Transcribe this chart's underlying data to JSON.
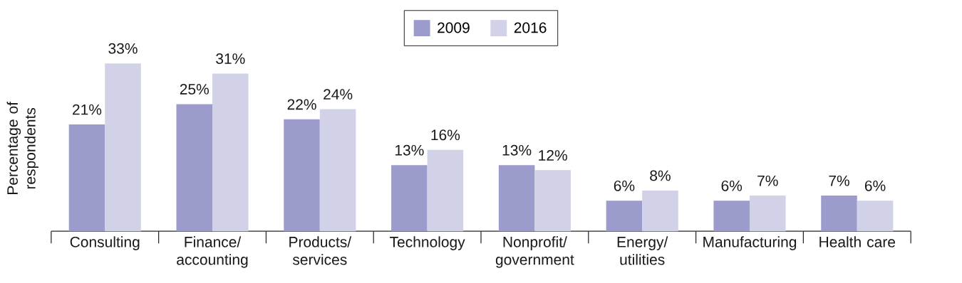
{
  "chart_data": {
    "type": "bar",
    "ylabel": "Percentage of respondents",
    "categories": [
      "Consulting",
      "Finance/ accounting",
      "Products/ services",
      "Technology",
      "Nonprofit/ government",
      "Energy/ utilities",
      "Manufacturing",
      "Health care"
    ],
    "series": [
      {
        "name": "2009",
        "color": "#9c9ccc",
        "values": [
          21,
          25,
          22,
          13,
          13,
          6,
          6,
          7
        ],
        "value_labels": [
          "21%",
          "25%",
          "22%",
          "13%",
          "13%",
          "6%",
          "6%",
          "7%"
        ]
      },
      {
        "name": "2016",
        "color": "#d1d1e8",
        "values": [
          33,
          31,
          24,
          16,
          12,
          8,
          7,
          6
        ],
        "value_labels": [
          "33%",
          "31%",
          "24%",
          "16%",
          "12%",
          "8%",
          "7%",
          "6%"
        ]
      }
    ],
    "legend": "top"
  }
}
